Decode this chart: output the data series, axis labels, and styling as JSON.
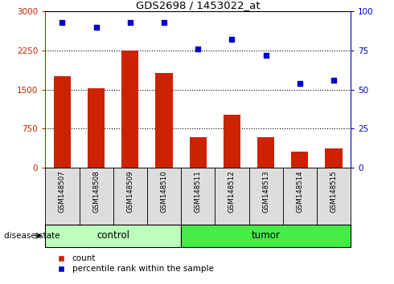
{
  "title": "GDS2698 / 1453022_at",
  "samples": [
    "GSM148507",
    "GSM148508",
    "GSM148509",
    "GSM148510",
    "GSM148511",
    "GSM148512",
    "GSM148513",
    "GSM148514",
    "GSM148515"
  ],
  "counts": [
    1750,
    1520,
    2240,
    1820,
    580,
    1020,
    590,
    310,
    370
  ],
  "percentiles": [
    93,
    90,
    93,
    93,
    76,
    82,
    72,
    54,
    56
  ],
  "ylim_left": [
    0,
    3000
  ],
  "ylim_right": [
    0,
    100
  ],
  "yticks_left": [
    0,
    750,
    1500,
    2250,
    3000
  ],
  "yticks_right": [
    0,
    25,
    50,
    75,
    100
  ],
  "hlines": [
    750,
    1500,
    2250
  ],
  "bar_color": "#cc2200",
  "dot_color": "#0000cc",
  "control_color": "#bbffbb",
  "tumor_color": "#44ee44",
  "group_edge_color": "#000000",
  "groups": [
    {
      "label": "control",
      "start": 0,
      "end": 3
    },
    {
      "label": "tumor",
      "start": 4,
      "end": 8
    }
  ],
  "legend_labels": [
    "count",
    "percentile rank within the sample"
  ],
  "xlabel_group": "disease state",
  "bar_width": 0.5,
  "xtick_bg": "#dddddd"
}
